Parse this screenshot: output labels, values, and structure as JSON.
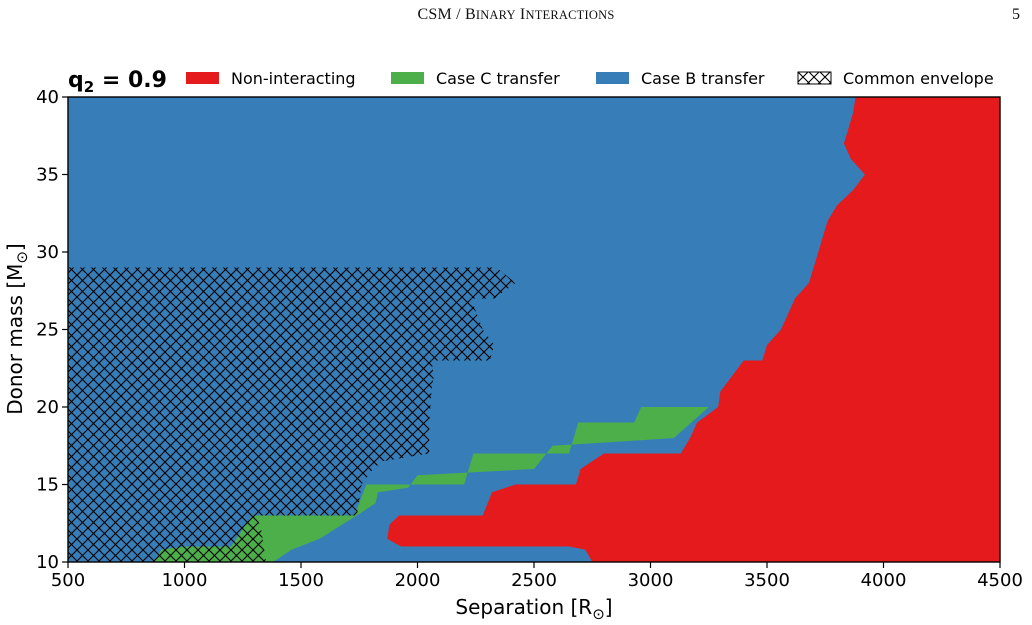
{
  "header": {
    "running_head_main": "CSM / B",
    "running_head_sc1": "INARY",
    "running_head_mid": " I",
    "running_head_sc2": "NTERACTIONS",
    "page_number": "5"
  },
  "chart_data": {
    "type": "area",
    "panel_label": "q",
    "panel_label_sub": "2",
    "panel_label_value": " = 0.9",
    "xlabel": "Separation [R",
    "xlabel_sub": "⊙",
    "xlabel_end": "]",
    "ylabel": "Donor mass [M",
    "ylabel_sub": "⊙",
    "ylabel_end": "]",
    "xlim": [
      500,
      4500
    ],
    "ylim": [
      10,
      40
    ],
    "xticks": [
      500,
      1000,
      1500,
      2000,
      2500,
      3000,
      3500,
      4000,
      4500
    ],
    "yticks": [
      10,
      15,
      20,
      25,
      30,
      35,
      40
    ],
    "legend_placement": "top",
    "legend": [
      {
        "label": "Non-interacting",
        "color": "#e41a1c",
        "hatch": false
      },
      {
        "label": "Case C transfer",
        "color": "#4daf4a",
        "hatch": false
      },
      {
        "label": "Case B transfer",
        "color": "#377eb8",
        "hatch": false
      },
      {
        "label": "Common envelope",
        "color": "#ffffff",
        "hatch": true
      }
    ],
    "background_region": "Case B transfer",
    "regions": [
      {
        "name": "Case C transfer",
        "color": "#4daf4a",
        "boundary": [
          [
            870,
            10
          ],
          [
            900,
            10.8
          ],
          [
            1000,
            11
          ],
          [
            1200,
            11
          ],
          [
            1290,
            13
          ],
          [
            1730,
            13
          ],
          [
            1780,
            15
          ],
          [
            2200,
            15
          ],
          [
            2240,
            17
          ],
          [
            2650,
            17
          ],
          [
            2690,
            19
          ],
          [
            2930,
            19
          ],
          [
            2960,
            20
          ],
          [
            3250,
            20
          ],
          [
            3100,
            18
          ],
          [
            2900,
            17.8
          ],
          [
            2580,
            17.5
          ],
          [
            2500,
            16
          ],
          [
            2000,
            15.6
          ],
          [
            1960,
            14.8
          ],
          [
            1830,
            14.5
          ],
          [
            1820,
            13.8
          ],
          [
            1760,
            13.2
          ],
          [
            1580,
            11.5
          ],
          [
            1460,
            10.8
          ],
          [
            1380,
            10
          ]
        ]
      },
      {
        "name": "Non-interacting",
        "color": "#e41a1c",
        "boundary": [
          [
            2750,
            10
          ],
          [
            2720,
            10.8
          ],
          [
            2650,
            11
          ],
          [
            1930,
            11
          ],
          [
            1870,
            11.5
          ],
          [
            1880,
            12.4
          ],
          [
            1920,
            13
          ],
          [
            2280,
            13
          ],
          [
            2320,
            14.5
          ],
          [
            2420,
            15
          ],
          [
            2680,
            15
          ],
          [
            2700,
            16
          ],
          [
            2800,
            17
          ],
          [
            3130,
            17
          ],
          [
            3170,
            18
          ],
          [
            3200,
            19
          ],
          [
            3290,
            20
          ],
          [
            3300,
            21
          ],
          [
            3400,
            23
          ],
          [
            3480,
            23
          ],
          [
            3500,
            24
          ],
          [
            3560,
            25
          ],
          [
            3620,
            27
          ],
          [
            3680,
            28
          ],
          [
            3720,
            30
          ],
          [
            3760,
            32
          ],
          [
            3800,
            33
          ],
          [
            3870,
            34
          ],
          [
            3920,
            35
          ],
          [
            3860,
            36
          ],
          [
            3830,
            37
          ],
          [
            3850,
            38
          ],
          [
            3870,
            39
          ],
          [
            3880,
            40
          ],
          [
            4500,
            40
          ],
          [
            4500,
            10
          ]
        ]
      },
      {
        "name": "Common envelope",
        "color": "hatch",
        "boundary": [
          [
            500,
            10
          ],
          [
            1350,
            10
          ],
          [
            1330,
            12
          ],
          [
            1310,
            13
          ],
          [
            1740,
            13
          ],
          [
            1760,
            15
          ],
          [
            1810,
            16
          ],
          [
            1850,
            16.5
          ],
          [
            2050,
            17
          ],
          [
            2050,
            19
          ],
          [
            2060,
            21
          ],
          [
            2070,
            22
          ],
          [
            2060,
            23
          ],
          [
            2310,
            23
          ],
          [
            2330,
            24
          ],
          [
            2280,
            25
          ],
          [
            2230,
            27
          ],
          [
            2330,
            27
          ],
          [
            2420,
            28
          ],
          [
            2340,
            29
          ],
          [
            500,
            29
          ]
        ]
      }
    ]
  }
}
